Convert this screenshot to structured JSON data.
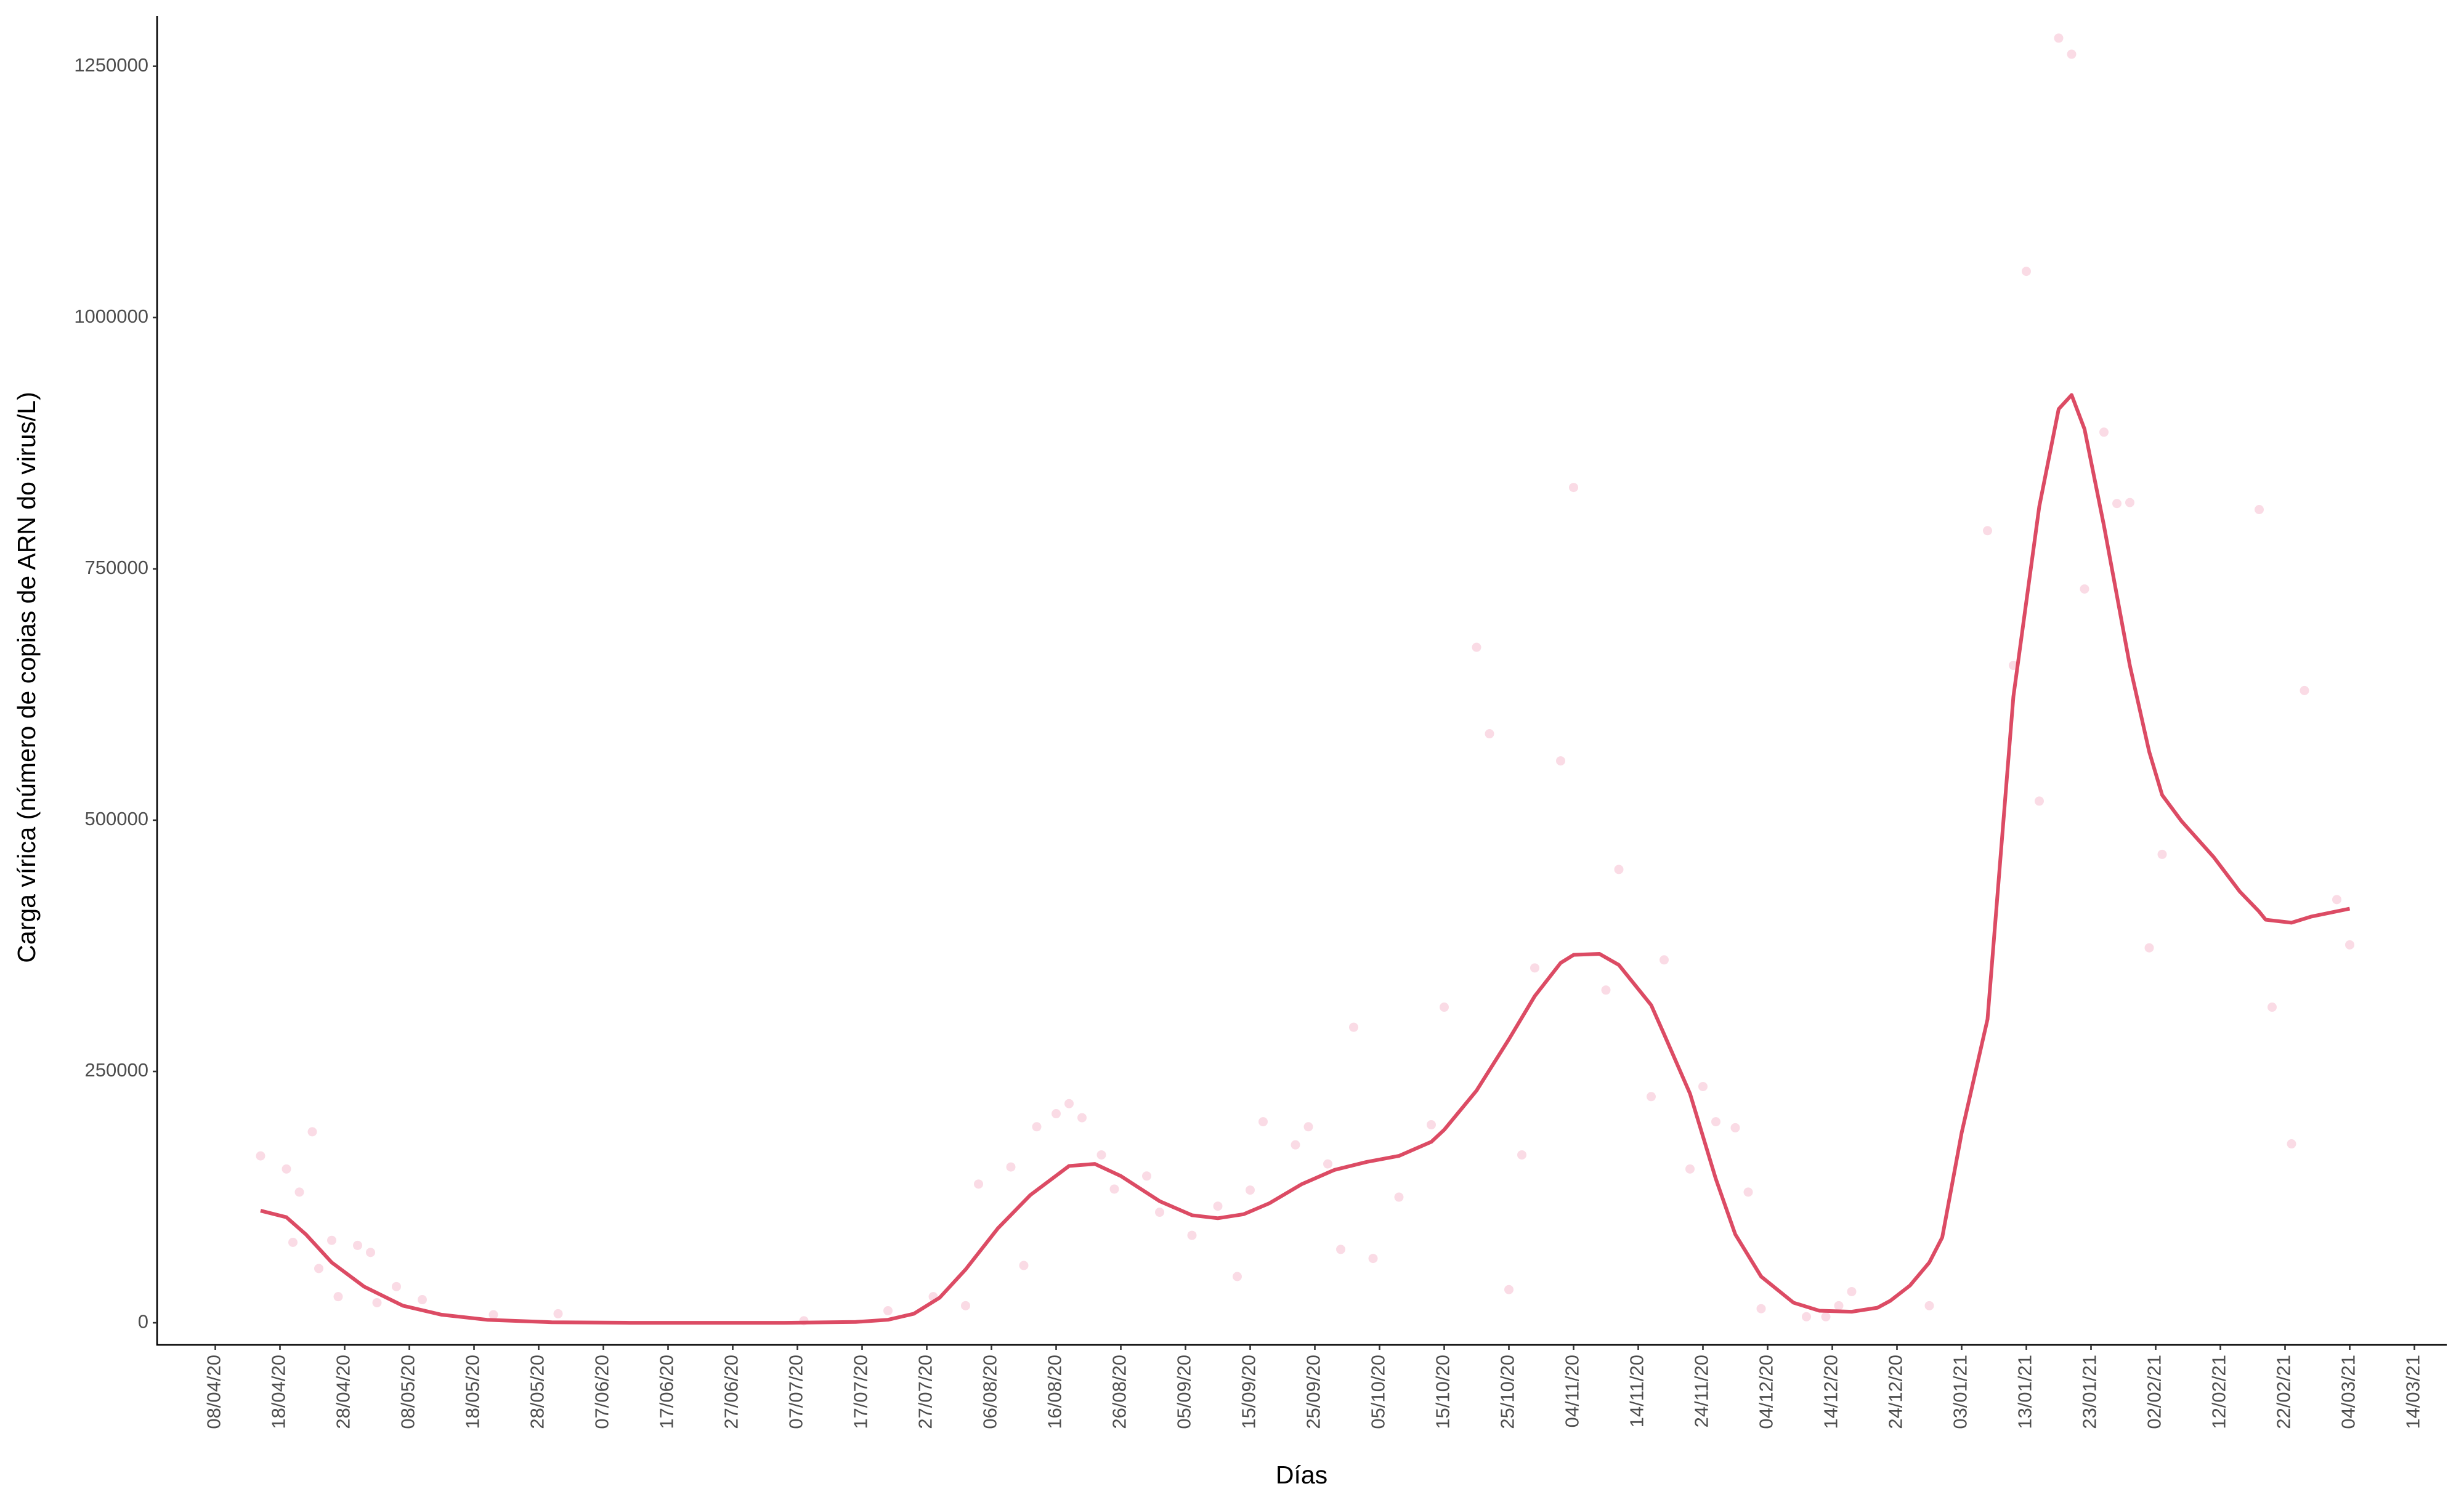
{
  "chart_data": {
    "type": "line",
    "xlabel": "Días",
    "ylabel": "Carga vírica (número de copias de ARN do virus/L)",
    "xlim": [
      "30/03/20",
      "19/03/21"
    ],
    "xticks": [
      "08/04/20",
      "18/04/20",
      "28/04/20",
      "08/05/20",
      "18/05/20",
      "28/05/20",
      "07/06/20",
      "17/06/20",
      "27/06/20",
      "07/07/20",
      "17/07/20",
      "27/07/20",
      "06/08/20",
      "16/08/20",
      "26/08/20",
      "05/09/20",
      "15/09/20",
      "25/09/20",
      "05/10/20",
      "15/10/20",
      "25/10/20",
      "04/11/20",
      "14/11/20",
      "24/11/20",
      "04/12/20",
      "14/12/20",
      "24/12/20",
      "03/01/21",
      "13/01/21",
      "23/01/21",
      "02/02/21",
      "12/02/21",
      "22/02/21",
      "04/03/21",
      "14/03/21"
    ],
    "ylim": [
      -22000,
      1300000
    ],
    "yticks": [
      0,
      250000,
      500000,
      750000,
      1000000,
      1250000
    ],
    "grid": false,
    "series": [
      {
        "type": "scatter",
        "color": "#f8cfdc",
        "x": [
          "15/04/20",
          "19/04/20",
          "20/04/20",
          "21/04/20",
          "23/04/20",
          "24/04/20",
          "26/04/20",
          "27/04/20",
          "30/04/20",
          "02/05/20",
          "03/05/20",
          "06/05/20",
          "10/05/20",
          "21/05/20",
          "31/05/20",
          "08/07/20",
          "21/07/20",
          "28/07/20",
          "02/08/20",
          "04/08/20",
          "09/08/20",
          "11/08/20",
          "13/08/20",
          "16/08/20",
          "18/08/20",
          "20/08/20",
          "23/08/20",
          "25/08/20",
          "30/08/20",
          "01/09/20",
          "06/09/20",
          "10/09/20",
          "13/09/20",
          "15/09/20",
          "17/09/20",
          "22/09/20",
          "24/09/20",
          "27/09/20",
          "29/09/20",
          "01/10/20",
          "04/10/20",
          "08/10/20",
          "13/10/20",
          "15/10/20",
          "20/10/20",
          "22/10/20",
          "25/10/20",
          "27/10/20",
          "29/10/20",
          "02/11/20",
          "04/11/20",
          "09/11/20",
          "11/11/20",
          "16/11/20",
          "18/11/20",
          "22/11/20",
          "24/11/20",
          "26/11/20",
          "29/11/20",
          "01/12/20",
          "03/12/20",
          "10/12/20",
          "13/12/20",
          "15/12/20",
          "17/12/20",
          "29/12/20",
          "07/01/21",
          "11/01/21",
          "13/01/21",
          "15/01/21",
          "18/01/21",
          "20/01/21",
          "22/01/21",
          "25/01/21",
          "27/01/21",
          "29/01/21",
          "01/02/21",
          "03/02/21",
          "18/02/21",
          "20/02/21",
          "23/02/21",
          "25/02/21",
          "02/03/21",
          "04/03/21"
        ],
        "values": [
          166000,
          153000,
          80000,
          130000,
          190000,
          54000,
          82000,
          26000,
          77000,
          70000,
          20000,
          36000,
          23000,
          8000,
          9000,
          2000,
          12000,
          26000,
          17000,
          138000,
          155000,
          57000,
          195000,
          208000,
          218000,
          204000,
          167000,
          133000,
          146000,
          110000,
          87000,
          116000,
          46000,
          132000,
          200000,
          177000,
          195000,
          158000,
          73000,
          294000,
          64000,
          125000,
          197000,
          314000,
          672000,
          586000,
          33000,
          167000,
          353000,
          559000,
          831000,
          331000,
          451000,
          225000,
          361000,
          153000,
          235000,
          200000,
          194000,
          130000,
          14000,
          6000,
          6000,
          17000,
          31000,
          17000,
          788000,
          654000,
          1046000,
          519000,
          1278000,
          1262000,
          730000,
          886000,
          815000,
          816000,
          373000,
          466000,
          809000,
          314000,
          178000,
          629000,
          421000,
          376000
        ]
      },
      {
        "type": "line",
        "color": "#dc4b64",
        "x": [
          "15/04/20",
          "19/04/20",
          "22/04/20",
          "26/04/20",
          "01/05/20",
          "07/05/20",
          "13/05/20",
          "20/05/20",
          "30/05/20",
          "11/06/20",
          "05/07/20",
          "16/07/20",
          "21/07/20",
          "25/07/20",
          "29/07/20",
          "02/08/20",
          "07/08/20",
          "12/08/20",
          "18/08/20",
          "22/08/20",
          "26/08/20",
          "01/09/20",
          "06/09/20",
          "10/09/20",
          "14/09/20",
          "18/09/20",
          "23/09/20",
          "28/09/20",
          "03/10/20",
          "08/10/20",
          "13/10/20",
          "15/10/20",
          "20/10/20",
          "25/10/20",
          "29/10/20",
          "02/11/20",
          "04/11/20",
          "08/11/20",
          "11/11/20",
          "16/11/20",
          "18/11/20",
          "22/11/20",
          "26/11/20",
          "29/11/20",
          "03/12/20",
          "08/12/20",
          "12/12/20",
          "17/12/20",
          "21/12/20",
          "23/12/20",
          "26/12/20",
          "29/12/20",
          "31/12/20",
          "03/01/21",
          "07/01/21",
          "11/01/21",
          "15/01/21",
          "18/01/21",
          "20/01/21",
          "22/01/21",
          "25/01/21",
          "29/01/21",
          "01/02/21",
          "03/02/21",
          "06/02/21",
          "11/02/21",
          "15/02/21",
          "18/02/21",
          "19/02/21",
          "23/02/21",
          "26/02/21",
          "04/03/21"
        ],
        "values": [
          111500,
          105000,
          88000,
          60000,
          36000,
          17000,
          8000,
          3000,
          500,
          0,
          0,
          800,
          3000,
          9000,
          25000,
          53000,
          94000,
          127000,
          156000,
          158000,
          146000,
          121000,
          107000,
          104000,
          108000,
          119000,
          138000,
          152000,
          160000,
          166000,
          180000,
          192000,
          231000,
          282000,
          325000,
          358000,
          366000,
          367000,
          356000,
          316000,
          287000,
          228000,
          143000,
          88000,
          46000,
          20000,
          12000,
          11000,
          15000,
          22000,
          37000,
          60000,
          85000,
          189000,
          302000,
          623000,
          812000,
          909000,
          923000,
          889000,
          793000,
          654000,
          568000,
          525000,
          499000,
          463000,
          429000,
          409000,
          401000,
          398000,
          404000,
          412000
        ]
      }
    ]
  }
}
